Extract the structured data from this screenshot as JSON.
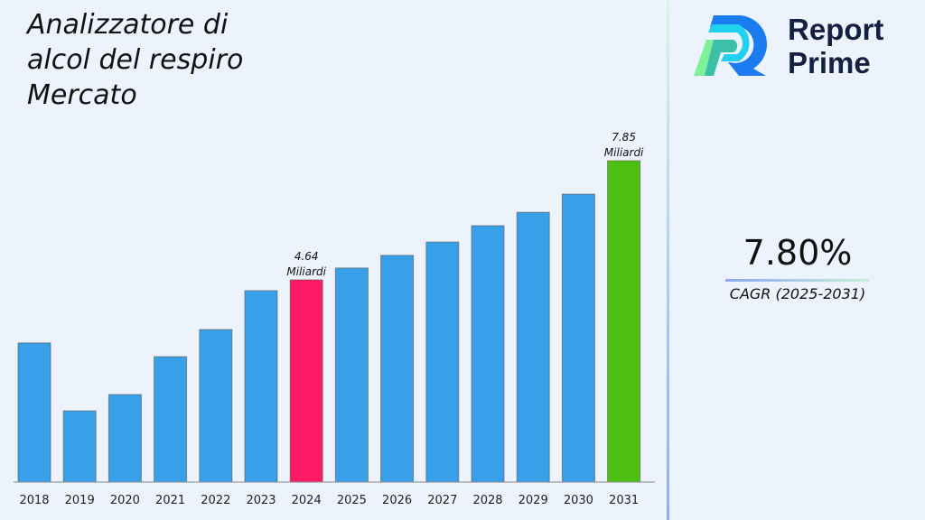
{
  "title_lines": [
    "Analizzatore di",
    "alcol del respiro",
    "Mercato"
  ],
  "logo": {
    "line1": "Report",
    "line2": "Prime"
  },
  "cagr": {
    "value": "7.80%",
    "label": "CAGR (2025-2031)"
  },
  "colors": {
    "default_bar": "#37a0e8",
    "highlight_2024": "#ff1a66",
    "highlight_2031": "#4cbf10",
    "background": "#edf3fd"
  },
  "chart_data": {
    "type": "bar",
    "categories": [
      "2018",
      "2019",
      "2020",
      "2021",
      "2022",
      "2023",
      "2024",
      "2025",
      "2026",
      "2027",
      "2028",
      "2029",
      "2030",
      "2031"
    ],
    "values": [
      2.94,
      1.11,
      1.55,
      2.57,
      3.3,
      4.35,
      4.64,
      4.96,
      5.3,
      5.66,
      6.1,
      6.46,
      6.95,
      7.85
    ],
    "data_labels": [
      {
        "category": "2024",
        "value": "4.64",
        "unit": "Miliardi"
      },
      {
        "category": "2031",
        "value": "7.85",
        "unit": "Miliardi"
      }
    ],
    "title": "Analizzatore di alcol del respiro Mercato",
    "xlabel": "",
    "ylabel": "",
    "grid": false
  }
}
